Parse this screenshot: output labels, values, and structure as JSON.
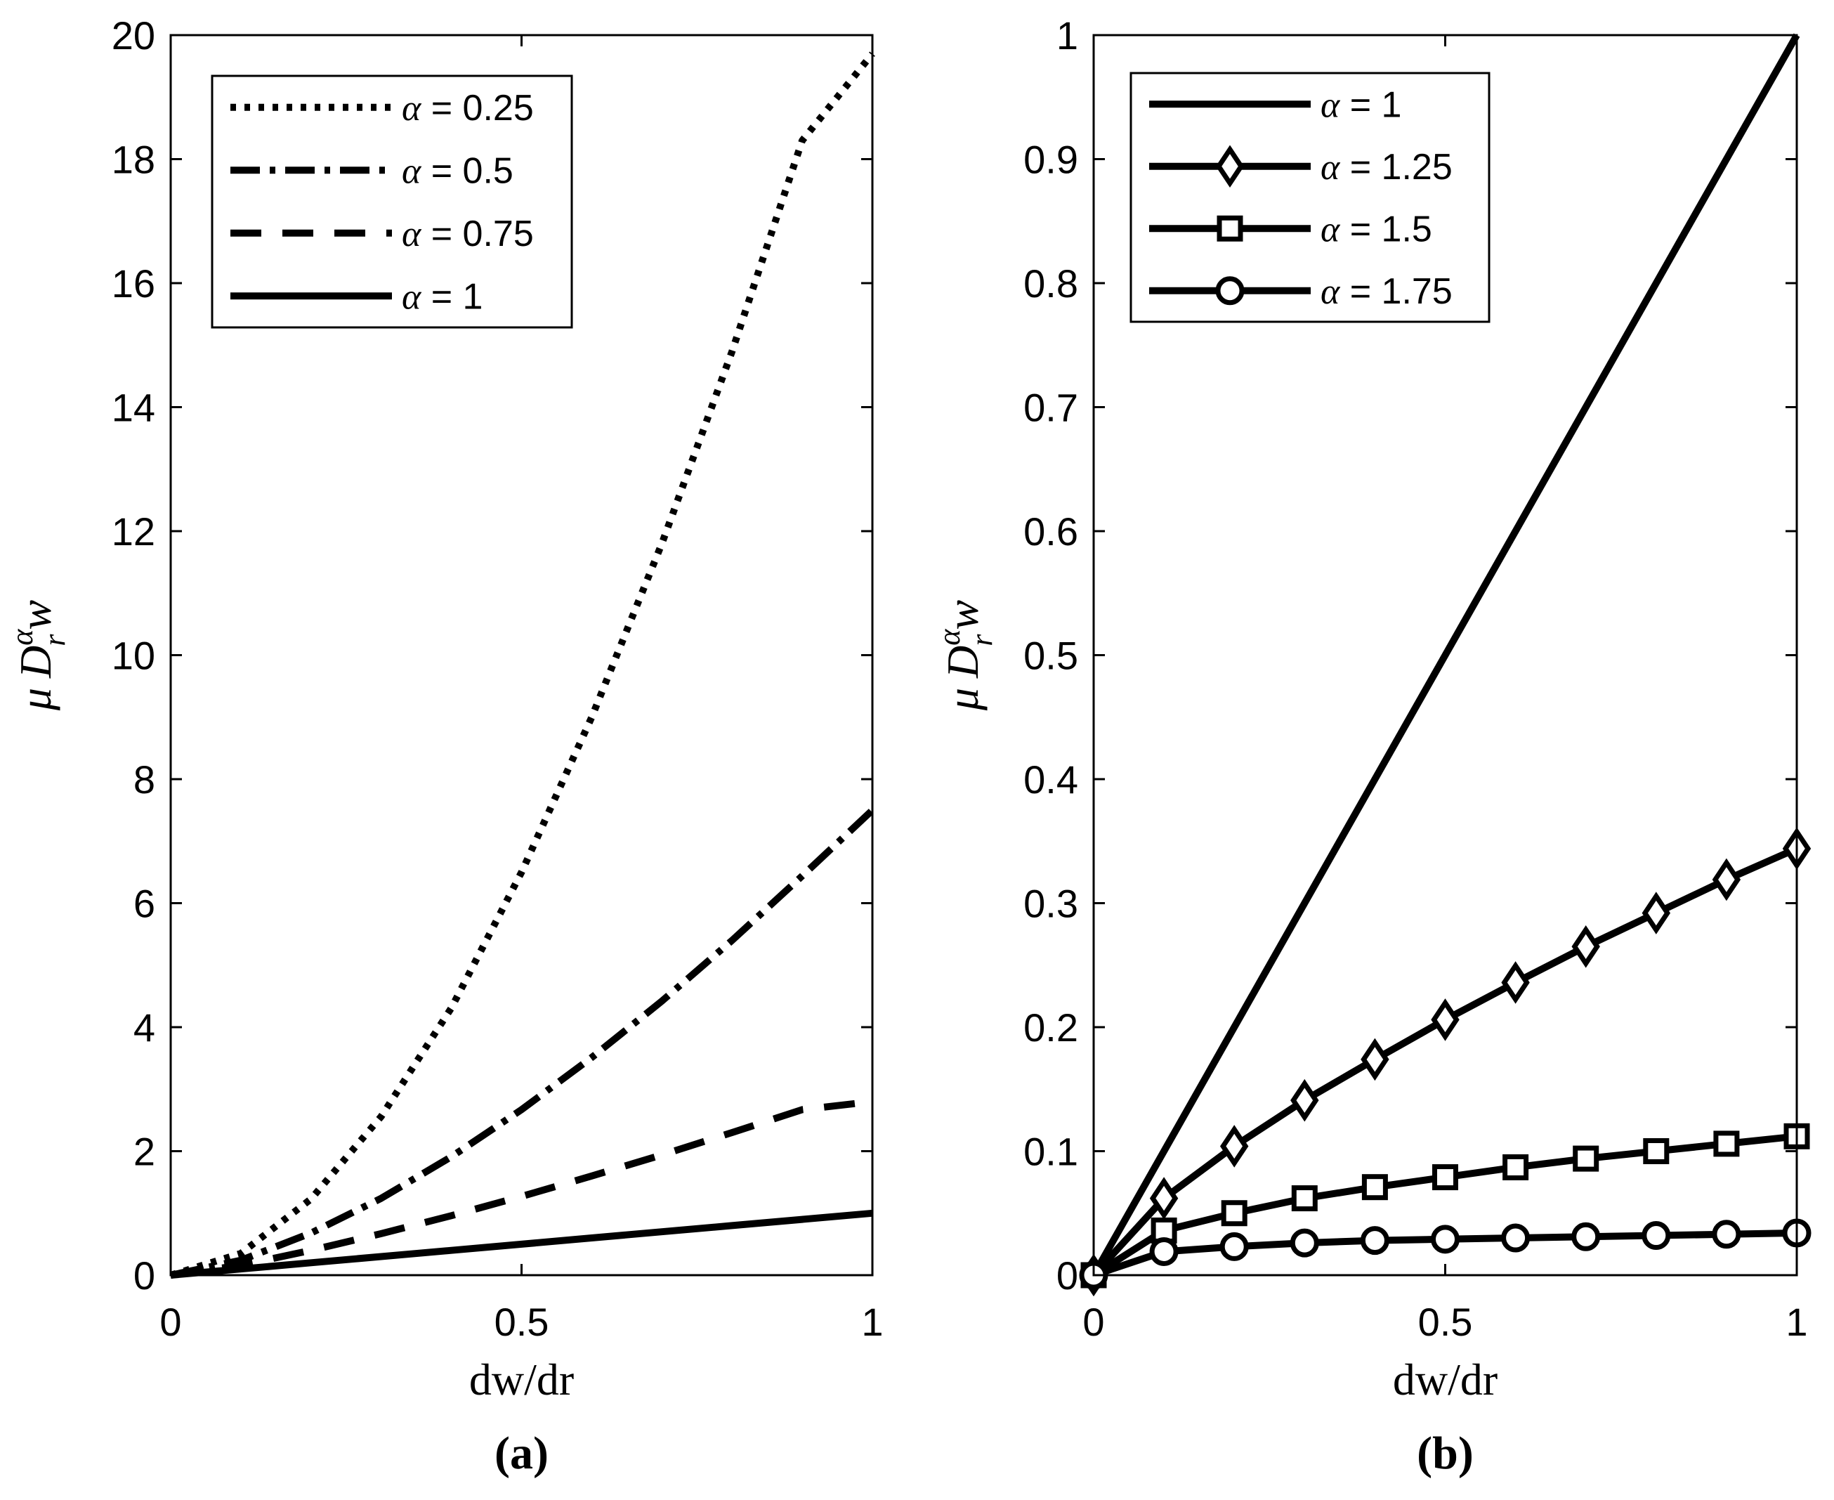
{
  "chart_data": [
    {
      "type": "line",
      "panel_label": "(a)",
      "xlabel": "dw/dr",
      "ylabel": "μ D_r^α w",
      "ylabel_parts": {
        "mu": "μ",
        "D": "D",
        "sup": "α",
        "sub": "r",
        "w": "w"
      },
      "xlim": [
        0,
        1
      ],
      "ylim": [
        0,
        20
      ],
      "xticks": [
        0,
        0.5,
        1
      ],
      "xtick_labels": [
        "0",
        "0.5",
        "1"
      ],
      "yticks": [
        0,
        2,
        4,
        6,
        8,
        10,
        12,
        14,
        16,
        18,
        20
      ],
      "ytick_labels": [
        "0",
        "2",
        "4",
        "6",
        "8",
        "10",
        "12",
        "14",
        "16",
        "18",
        "20"
      ],
      "legend_position": "top-left",
      "series": [
        {
          "name": "α = 0.25",
          "alpha_symbol": "α",
          "label_rest": " = 0.25",
          "style": "dotted",
          "marker": "none",
          "alpha": 0.25,
          "x": [
            0,
            0.1,
            0.2,
            0.3,
            0.4,
            0.5,
            0.6,
            0.7,
            0.8,
            0.9,
            1.0
          ],
          "y": [
            0,
            0.35,
            1.23,
            2.56,
            4.31,
            6.5,
            9.0,
            11.8,
            14.9,
            18.3,
            19.7
          ]
        },
        {
          "name": "α = 0.5",
          "alpha_symbol": "α",
          "label_rest": " = 0.5",
          "style": "dashdot",
          "marker": "none",
          "alpha": 0.5,
          "x": [
            0,
            0.1,
            0.2,
            0.3,
            0.4,
            0.5,
            0.6,
            0.7,
            0.8,
            0.9,
            1.0
          ],
          "y": [
            0,
            0.24,
            0.68,
            1.24,
            1.91,
            2.67,
            3.51,
            4.42,
            5.4,
            6.44,
            7.5
          ]
        },
        {
          "name": "α = 0.75",
          "alpha_symbol": "α",
          "label_rest": " = 0.75",
          "style": "dashed",
          "marker": "none",
          "alpha": 0.75,
          "x": [
            0,
            0.1,
            0.2,
            0.3,
            0.4,
            0.5,
            0.6,
            0.7,
            0.8,
            0.9,
            1.0
          ],
          "y": [
            0,
            0.16,
            0.4,
            0.67,
            0.96,
            1.27,
            1.6,
            1.94,
            2.3,
            2.67,
            2.8
          ]
        },
        {
          "name": "α = 1",
          "alpha_symbol": "α",
          "label_rest": " = 1",
          "style": "solid",
          "marker": "none",
          "alpha": 1,
          "x": [
            0,
            0.1,
            0.2,
            0.3,
            0.4,
            0.5,
            0.6,
            0.7,
            0.8,
            0.9,
            1.0
          ],
          "y": [
            0,
            0.1,
            0.2,
            0.3,
            0.4,
            0.5,
            0.6,
            0.7,
            0.8,
            0.9,
            1.0
          ]
        }
      ]
    },
    {
      "type": "line",
      "panel_label": "(b)",
      "xlabel": "dw/dr",
      "ylabel": "μ D_r^α w",
      "ylabel_parts": {
        "mu": "μ",
        "D": "D",
        "sup": "α",
        "sub": "r",
        "w": "w"
      },
      "xlim": [
        0,
        1
      ],
      "ylim": [
        0,
        1
      ],
      "xticks": [
        0,
        0.5,
        1
      ],
      "xtick_labels": [
        "0",
        "0.5",
        "1"
      ],
      "yticks": [
        0,
        0.1,
        0.2,
        0.3,
        0.4,
        0.5,
        0.6,
        0.7,
        0.8,
        0.9,
        1
      ],
      "ytick_labels": [
        "0",
        "0.1",
        "0.2",
        "0.3",
        "0.4",
        "0.5",
        "0.6",
        "0.7",
        "0.8",
        "0.9",
        "1"
      ],
      "legend_position": "top-left",
      "series": [
        {
          "name": "α = 1",
          "alpha_symbol": "α",
          "label_rest": " = 1",
          "style": "solid",
          "marker": "none",
          "alpha": 1,
          "x": [
            0,
            1
          ],
          "y": [
            0,
            1.0
          ]
        },
        {
          "name": "α = 1.25",
          "alpha_symbol": "α",
          "label_rest": " = 1.25",
          "style": "solid",
          "marker": "diamond",
          "alpha": 1.25,
          "x": [
            0,
            0.1,
            0.2,
            0.3,
            0.4,
            0.5,
            0.6,
            0.7,
            0.8,
            0.9,
            1.0
          ],
          "y": [
            0,
            0.062,
            0.104,
            0.141,
            0.174,
            0.206,
            0.236,
            0.265,
            0.292,
            0.319,
            0.344
          ]
        },
        {
          "name": "α = 1.5",
          "alpha_symbol": "α",
          "label_rest": " = 1.5",
          "style": "solid",
          "marker": "square",
          "alpha": 1.5,
          "x": [
            0,
            0.1,
            0.2,
            0.3,
            0.4,
            0.5,
            0.6,
            0.7,
            0.8,
            0.9,
            1.0
          ],
          "y": [
            0,
            0.036,
            0.05,
            0.062,
            0.071,
            0.079,
            0.087,
            0.094,
            0.1,
            0.106,
            0.112
          ]
        },
        {
          "name": "α = 1.75",
          "alpha_symbol": "α",
          "label_rest": " = 1.75",
          "style": "solid",
          "marker": "circle",
          "alpha": 1.75,
          "x": [
            0,
            0.1,
            0.2,
            0.3,
            0.4,
            0.5,
            0.6,
            0.7,
            0.8,
            0.9,
            1.0
          ],
          "y": [
            0,
            0.019,
            0.023,
            0.026,
            0.028,
            0.029,
            0.03,
            0.031,
            0.032,
            0.033,
            0.034
          ]
        }
      ]
    }
  ]
}
